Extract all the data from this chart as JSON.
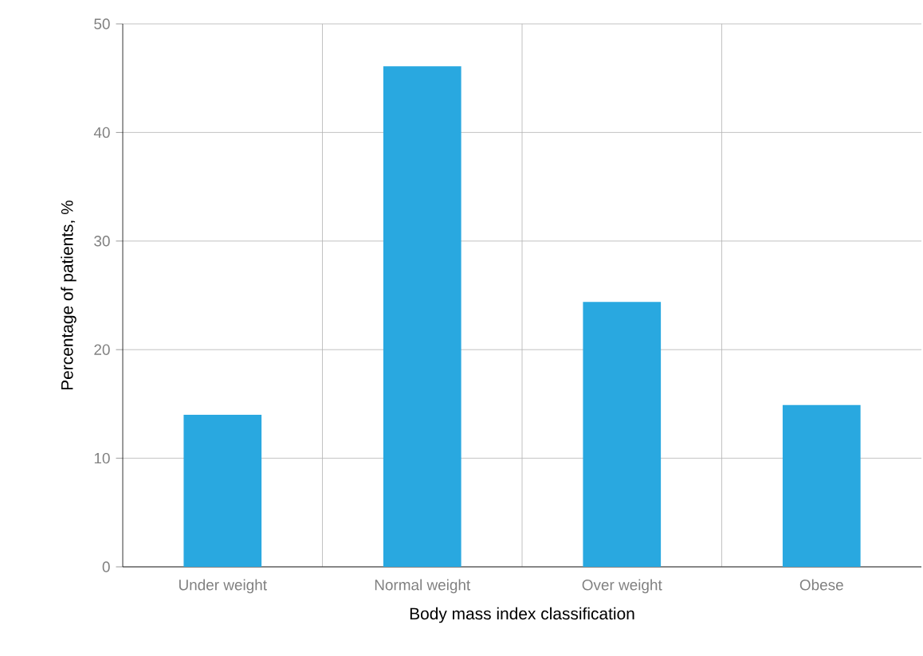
{
  "chart_data": {
    "type": "bar",
    "xlabel": "Body mass index classification",
    "ylabel": "Percentage of patients, %",
    "categories": [
      "Under weight",
      "Normal weight",
      "Over weight",
      "Obese"
    ],
    "values": [
      14.0,
      46.1,
      24.4,
      14.9
    ],
    "color": "#29a8e0",
    "ylim": [
      0,
      50
    ],
    "yticks": [
      0,
      10,
      20,
      30,
      40,
      50
    ],
    "grid": true
  }
}
